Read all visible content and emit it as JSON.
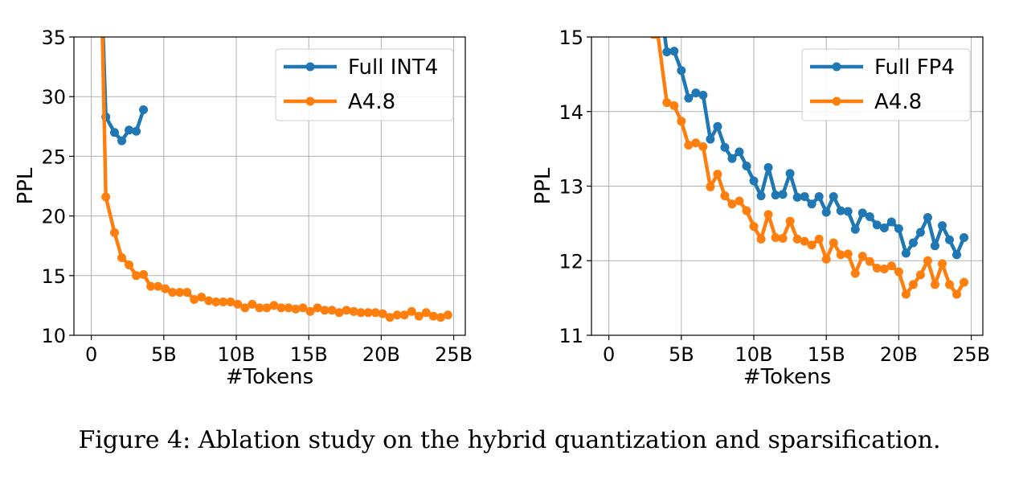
{
  "caption": "Figure 4: Ablation study on the hybrid quantization and sparsification.",
  "colors": {
    "series_a": "#1f77b4",
    "series_b": "#ff7f0e",
    "grid": "#b0b0b0"
  },
  "chart_data": [
    {
      "type": "line",
      "xlabel": "#Tokens",
      "ylabel": "PPL",
      "xlim": [
        -1.2,
        25.8
      ],
      "ylim": [
        10,
        35
      ],
      "xticks": [
        {
          "v": 0,
          "label": "0"
        },
        {
          "v": 5,
          "label": "5B"
        },
        {
          "v": 10,
          "label": "10B"
        },
        {
          "v": 15,
          "label": "15B"
        },
        {
          "v": 20,
          "label": "20B"
        },
        {
          "v": 25,
          "label": "25B"
        }
      ],
      "yticks": [
        {
          "v": 10,
          "label": "10"
        },
        {
          "v": 15,
          "label": "15"
        },
        {
          "v": 20,
          "label": "20"
        },
        {
          "v": 25,
          "label": "25"
        },
        {
          "v": 30,
          "label": "30"
        },
        {
          "v": 35,
          "label": "35"
        }
      ],
      "grid": true,
      "legend_position": "top-right",
      "series": [
        {
          "name": "Full INT4",
          "color": "#1f77b4",
          "x": [
            0.4,
            1.0,
            1.6,
            2.1,
            2.6,
            3.1,
            3.6
          ],
          "y": [
            50,
            28.3,
            27.0,
            26.3,
            27.2,
            27.1,
            28.9
          ],
          "markers_from": 1
        },
        {
          "name": "A4.8",
          "color": "#ff7f0e",
          "x": [
            0.5,
            1.0,
            1.6,
            2.1,
            2.6,
            3.1,
            3.6,
            4.1,
            4.6,
            5.1,
            5.6,
            6.1,
            6.6,
            7.1,
            7.6,
            8.1,
            8.6,
            9.1,
            9.6,
            10.1,
            10.6,
            11.1,
            11.6,
            12.1,
            12.6,
            13.1,
            13.6,
            14.1,
            14.6,
            15.1,
            15.6,
            16.1,
            16.6,
            17.1,
            17.6,
            18.1,
            18.6,
            19.1,
            19.6,
            20.1,
            20.6,
            21.1,
            21.6,
            22.1,
            22.6,
            23.1,
            23.6,
            24.1,
            24.6
          ],
          "y": [
            50,
            21.6,
            18.6,
            16.5,
            15.9,
            15.0,
            15.1,
            14.1,
            14.1,
            13.9,
            13.6,
            13.6,
            13.6,
            13.0,
            13.2,
            12.9,
            12.8,
            12.8,
            12.8,
            12.6,
            12.3,
            12.6,
            12.3,
            12.3,
            12.5,
            12.3,
            12.3,
            12.2,
            12.3,
            12.0,
            12.3,
            12.1,
            12.1,
            11.9,
            12.1,
            12.0,
            11.9,
            11.9,
            11.9,
            11.8,
            11.5,
            11.7,
            11.7,
            12.0,
            11.6,
            11.9,
            11.6,
            11.5,
            11.7
          ],
          "markers_from": 1
        }
      ]
    },
    {
      "type": "line",
      "xlabel": "#Tokens",
      "ylabel": "PPL",
      "xlim": [
        -1.2,
        25.8
      ],
      "ylim": [
        11,
        15
      ],
      "xticks": [
        {
          "v": 0,
          "label": "0"
        },
        {
          "v": 5,
          "label": "5B"
        },
        {
          "v": 10,
          "label": "10B"
        },
        {
          "v": 15,
          "label": "15B"
        },
        {
          "v": 20,
          "label": "20B"
        },
        {
          "v": 25,
          "label": "25B"
        }
      ],
      "yticks": [
        {
          "v": 11,
          "label": "11"
        },
        {
          "v": 12,
          "label": "12"
        },
        {
          "v": 13,
          "label": "13"
        },
        {
          "v": 14,
          "label": "14"
        },
        {
          "v": 15,
          "label": "15"
        }
      ],
      "grid": true,
      "legend_position": "top-right",
      "series": [
        {
          "name": "Full FP4",
          "color": "#1f77b4",
          "x": [
            3.6,
            4.0,
            4.5,
            5.0,
            5.5,
            6.0,
            6.5,
            7.0,
            7.5,
            8.0,
            8.5,
            9.0,
            9.5,
            10.0,
            10.5,
            11.0,
            11.5,
            12.0,
            12.5,
            13.0,
            13.5,
            14.0,
            14.5,
            15.0,
            15.5,
            16.0,
            16.5,
            17.0,
            17.5,
            18.0,
            18.5,
            19.0,
            19.5,
            20.0,
            20.5,
            21.0,
            21.5,
            22.0,
            22.5,
            23.0,
            23.5,
            24.0,
            24.5
          ],
          "y": [
            15.4,
            14.8,
            14.81,
            14.55,
            14.18,
            14.25,
            14.22,
            13.63,
            13.8,
            13.52,
            13.37,
            13.46,
            13.27,
            13.07,
            12.87,
            13.25,
            12.88,
            12.89,
            13.17,
            12.85,
            12.86,
            12.76,
            12.86,
            12.65,
            12.86,
            12.67,
            12.66,
            12.42,
            12.64,
            12.59,
            12.48,
            12.44,
            12.52,
            12.43,
            12.1,
            12.24,
            12.38,
            12.58,
            12.2,
            12.47,
            12.28,
            12.08,
            12.31
          ],
          "markers_from": 1
        },
        {
          "name": "A4.8",
          "color": "#ff7f0e",
          "x": [
            3.0,
            3.4,
            4.0,
            4.5,
            5.0,
            5.5,
            6.0,
            6.5,
            7.0,
            7.5,
            8.0,
            8.5,
            9.0,
            9.5,
            10.0,
            10.5,
            11.0,
            11.5,
            12.0,
            12.5,
            13.0,
            13.5,
            14.0,
            14.5,
            15.0,
            15.5,
            16.0,
            16.5,
            17.0,
            17.5,
            18.0,
            18.5,
            19.0,
            19.5,
            20.0,
            20.5,
            21.0,
            21.5,
            22.0,
            22.5,
            23.0,
            23.5,
            24.0,
            24.5
          ],
          "y": [
            15.0,
            15.0,
            14.12,
            14.08,
            13.87,
            13.55,
            13.58,
            13.53,
            12.99,
            13.16,
            12.87,
            12.76,
            12.8,
            12.67,
            12.46,
            12.29,
            12.62,
            12.31,
            12.3,
            12.53,
            12.29,
            12.26,
            12.21,
            12.29,
            12.02,
            12.24,
            12.08,
            12.09,
            11.83,
            12.06,
            11.99,
            11.9,
            11.89,
            11.93,
            11.85,
            11.55,
            11.68,
            11.81,
            12.0,
            11.68,
            11.96,
            11.68,
            11.55,
            11.71
          ],
          "markers_from": 2
        }
      ]
    }
  ]
}
